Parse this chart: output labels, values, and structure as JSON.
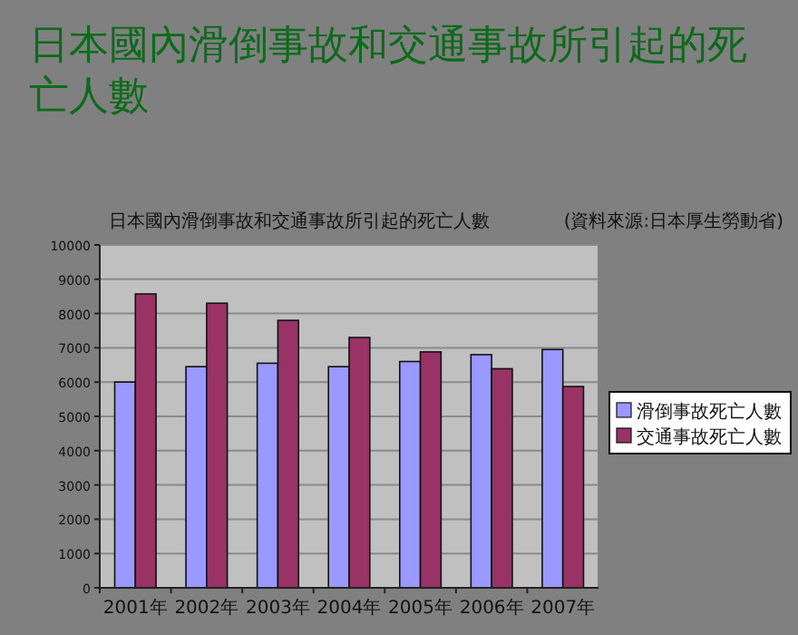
{
  "chart_data": {
    "type": "bar",
    "title": "日本國內滑倒事故和交通事故所引起的死亡人數",
    "subtitle": "日本國內滑倒事故和交通事故所引起的死亡人數",
    "annotations": [
      "(資料來源:日本厚生勞動省)"
    ],
    "categories": [
      "2001年",
      "2002年",
      "2003年",
      "2004年",
      "2005年",
      "2006年",
      "2007年"
    ],
    "series": [
      {
        "name": "滑倒事故死亡人數",
        "color": "#9999ff",
        "values": [
          6000,
          6450,
          6550,
          6450,
          6600,
          6800,
          6950
        ]
      },
      {
        "name": "交通事故死亡人數",
        "color": "#993366",
        "values": [
          8570,
          8300,
          7800,
          7300,
          6880,
          6390,
          5870
        ]
      }
    ],
    "ylim": [
      0,
      10000
    ],
    "yticks": [
      0,
      1000,
      2000,
      3000,
      4000,
      5000,
      6000,
      7000,
      8000,
      9000,
      10000
    ],
    "grid": "y",
    "legend": "right"
  }
}
